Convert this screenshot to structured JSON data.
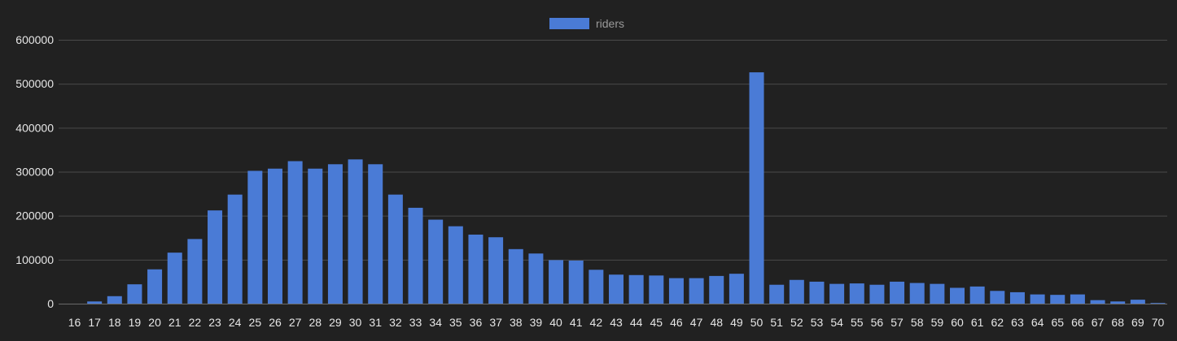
{
  "chart_data": {
    "type": "bar",
    "categories": [
      "16",
      "17",
      "18",
      "19",
      "20",
      "21",
      "22",
      "23",
      "24",
      "25",
      "26",
      "27",
      "28",
      "29",
      "30",
      "31",
      "32",
      "33",
      "34",
      "35",
      "36",
      "37",
      "38",
      "39",
      "40",
      "41",
      "42",
      "43",
      "44",
      "45",
      "46",
      "47",
      "48",
      "49",
      "50",
      "51",
      "52",
      "53",
      "54",
      "55",
      "56",
      "57",
      "58",
      "59",
      "60",
      "61",
      "62",
      "63",
      "64",
      "65",
      "66",
      "67",
      "68",
      "69",
      "70"
    ],
    "series": [
      {
        "name": "riders",
        "color": "#4a7bd6",
        "values": [
          0,
          5000,
          17000,
          44000,
          78000,
          116000,
          147000,
          212000,
          248000,
          302000,
          307000,
          324000,
          307000,
          317000,
          328000,
          317000,
          248000,
          218000,
          191000,
          176000,
          157000,
          151000,
          124000,
          114000,
          99000,
          98000,
          77000,
          66000,
          65000,
          64000,
          58000,
          58000,
          63000,
          68000,
          526000,
          43000,
          54000,
          50000,
          45000,
          46000,
          43000,
          50000,
          47000,
          45000,
          36000,
          39000,
          29000,
          26000,
          21000,
          20000,
          21000,
          8000,
          5000,
          9000,
          1500
        ]
      }
    ],
    "yticks": [
      0,
      100000,
      200000,
      300000,
      400000,
      500000,
      600000
    ],
    "ylim": [
      0,
      600000
    ],
    "grid": true,
    "legend": "top-center",
    "xlabel": "",
    "ylabel": "",
    "title": ""
  }
}
